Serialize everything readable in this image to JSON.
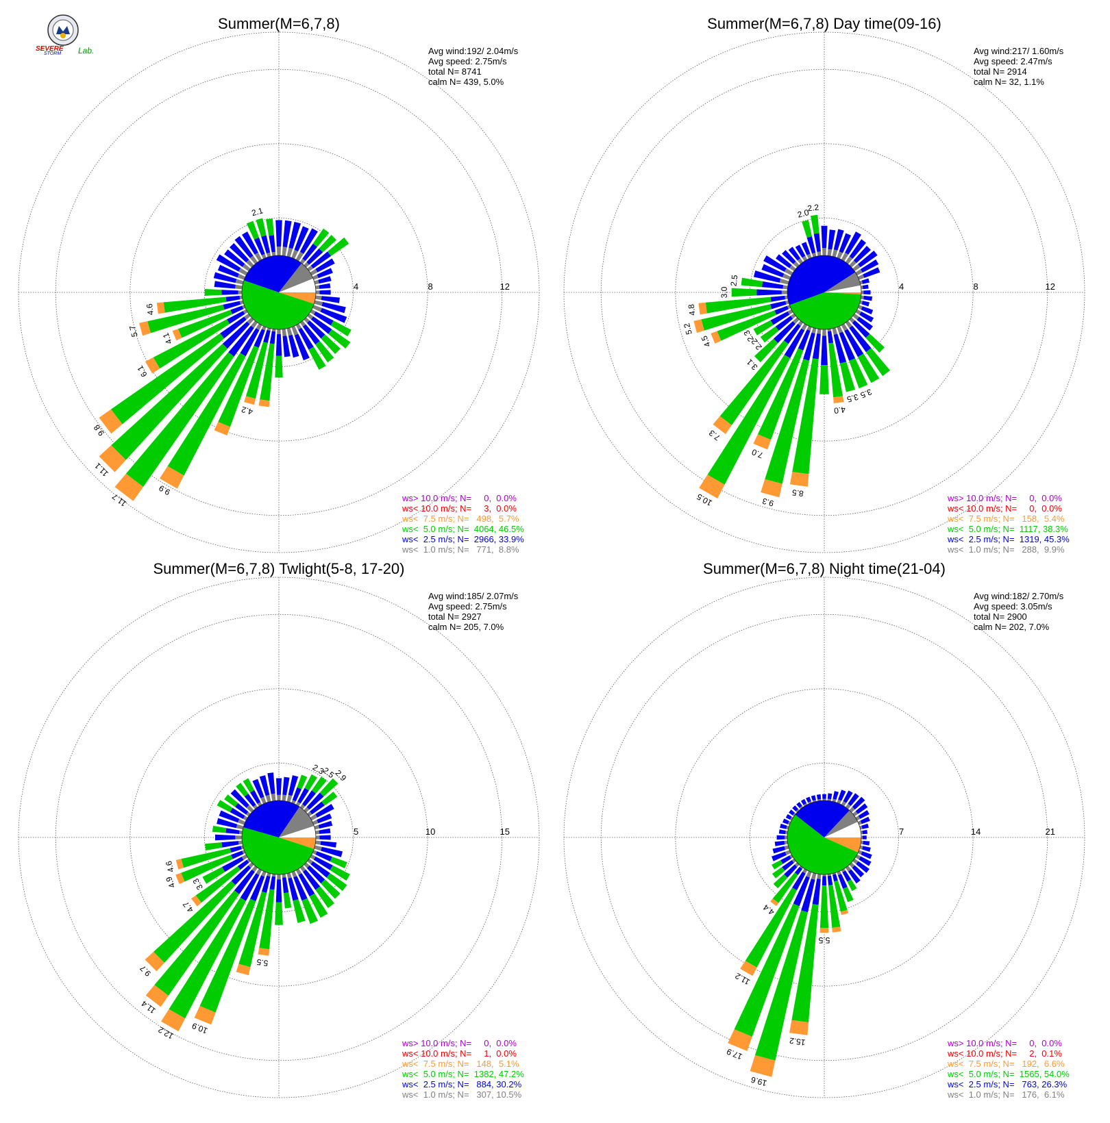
{
  "colors": {
    "ws_gt_10": "#aa00cc",
    "ws_lt_10": "#ee0000",
    "ws_lt_7_5": "#ff9933",
    "ws_lt_5": "#00cc00",
    "ws_lt_2_5": "#0000ee",
    "ws_lt_1": "#808080",
    "grid": "#555555"
  },
  "logo": {
    "line1": "SEVERE",
    "line2": "STORM",
    "line3": "Lab."
  },
  "chart_data": [
    {
      "type": "wind-rose",
      "title": "Summer(M=6,7,8)",
      "stats": [
        "Avg wind:192/ 2.04m/s",
        "Avg speed: 2.75m/s",
        "total N=        8741",
        "calm N=    439,   5.0%"
      ],
      "rings": [
        "4",
        "8",
        "12"
      ],
      "rmax": 14,
      "legend": [
        "ws> 10.0 m/s; N=     0,  0.0%",
        "ws< 10.0 m/s; N=     3,  0.0%",
        "ws<  7.5 m/s; N=   498,  5.7%",
        "ws<  5.0 m/s; N=  4064, 46.5%",
        "ws<  2.5 m/s; N=  2966, 33.9%",
        "ws<  1.0 m/s; N=   771,  8.8%"
      ],
      "pie": [
        {
          "from": 0,
          "to": 18,
          "band": "ws_lt_7_5"
        },
        {
          "from": 18,
          "to": 199,
          "band": "ws_lt_5"
        },
        {
          "from": 199,
          "to": 308,
          "band": "ws_lt_2_5"
        },
        {
          "from": 308,
          "to": 338,
          "band": "ws_lt_1"
        },
        {
          "from": 338,
          "to": 360,
          "band": "empty"
        }
      ],
      "sector_totals": [
        0.8,
        1.3,
        1.7,
        1.9,
        2.4,
        2.7,
        2.5,
        2.6,
        2.7,
        1.9,
        1.6,
        1.5,
        2.6,
        4.2,
        4.2,
        6.2,
        9.9,
        11.7,
        11.1,
        9.8,
        6.1,
        4.1,
        5.7,
        4.6,
        2.0,
        1.5,
        1.6,
        1.5,
        1.8,
        1.6,
        1.6,
        1.7,
        1.7,
        2.1,
        2.1,
        2.0,
        1.9,
        1.9,
        1.9,
        1.8,
        1.9,
        2.2,
        2.2,
        2.6,
        1.4,
        1.1,
        0.9,
        0.8
      ],
      "labels": [
        {
          "i": 14,
          "t": "4.2"
        },
        {
          "i": 16,
          "t": "9.9"
        },
        {
          "i": 17,
          "t": "11.7"
        },
        {
          "i": 18,
          "t": "11.1"
        },
        {
          "i": 19,
          "t": "9.8"
        },
        {
          "i": 20,
          "t": "6.1"
        },
        {
          "i": 21,
          "t": "4.1"
        },
        {
          "i": 22,
          "t": "5.7"
        },
        {
          "i": 23,
          "t": "4.6"
        },
        {
          "i": 34,
          "t": "2.1"
        }
      ]
    },
    {
      "type": "wind-rose",
      "title": "Summer(M=6,7,8) Day time(09-16)",
      "stats": [
        "Avg wind:217/ 1.60m/s",
        "Avg speed: 2.47m/s",
        "total N=        2914",
        "calm N=     32,   1.1%"
      ],
      "rings": [
        "4",
        "8",
        "12"
      ],
      "rmax": 14,
      "legend": [
        "ws> 10.0 m/s; N=     0,  0.0%",
        "ws< 10.0 m/s; N=     0,  0.0%",
        "ws<  7.5 m/s; N=   158,  5.4%",
        "ws<  5.0 m/s; N=  1117, 38.3%",
        "ws<  2.5 m/s; N=  1319, 45.3%",
        "ws<  1.0 m/s; N=   288,  9.9%"
      ],
      "pie": [
        {
          "from": 0,
          "to": 3,
          "band": "ws_lt_7_5"
        },
        {
          "from": 3,
          "to": 160,
          "band": "ws_lt_5"
        },
        {
          "from": 160,
          "to": 327,
          "band": "ws_lt_2_5"
        },
        {
          "from": 327,
          "to": 349,
          "band": "ws_lt_1"
        },
        {
          "from": 349,
          "to": 360,
          "band": "empty"
        }
      ],
      "sector_totals": [
        0.5,
        0.6,
        0.5,
        0.8,
        1.0,
        1.2,
        2.4,
        3.5,
        3.5,
        3.5,
        3.5,
        4.0,
        3.5,
        8.5,
        9.3,
        7.0,
        10.5,
        7.3,
        3.1,
        2.2,
        2.3,
        4.5,
        5.2,
        4.8,
        3.0,
        2.5,
        1.9,
        1.6,
        1.7,
        1.2,
        1.1,
        1.0,
        0.9,
        0.9,
        2.0,
        2.2,
        1.6,
        1.4,
        1.5,
        1.4,
        1.7,
        1.5,
        1.4,
        1.5,
        1.3,
        1.2,
        0.5,
        0.4
      ],
      "sector_map_note": "",
      "labels": [
        {
          "i": 9,
          "t": "3.5"
        },
        {
          "i": 10,
          "t": "3.5"
        },
        {
          "i": 11,
          "t": "4.0"
        },
        {
          "i": 13,
          "t": "8.5"
        },
        {
          "i": 14,
          "t": "9.3"
        },
        {
          "i": 15,
          "t": "7.0"
        },
        {
          "i": 16,
          "t": "10.5"
        },
        {
          "i": 17,
          "t": "7.3"
        },
        {
          "i": 18,
          "t": "3.1"
        },
        {
          "i": 19,
          "t": "2.2"
        },
        {
          "i": 20,
          "t": "2.3"
        },
        {
          "i": 21,
          "t": "4.5"
        },
        {
          "i": 22,
          "t": "5.2"
        },
        {
          "i": 23,
          "t": "4.8"
        },
        {
          "i": 24,
          "t": "3.0"
        },
        {
          "i": 25,
          "t": "2.5"
        },
        {
          "i": 34,
          "t": "2.0"
        },
        {
          "i": 35,
          "t": "2.2"
        }
      ]
    },
    {
      "type": "wind-rose",
      "title": "Summer(M=6,7,8) Twlight(5-8, 17-20)",
      "stats": [
        "Avg wind:185/ 2.07m/s",
        "Avg speed: 2.75m/s",
        "total N=        2927",
        "calm N=    205,   7.0%"
      ],
      "rings": [
        "5",
        "10",
        "15"
      ],
      "rmax": 17.5,
      "legend": [
        "ws> 10.0 m/s; N=     0,  0.0%",
        "ws< 10.0 m/s; N=     1,  0.0%",
        "ws<  7.5 m/s; N=   148,  5.1%",
        "ws<  5.0 m/s; N=  1382, 47.2%",
        "ws<  2.5 m/s; N=   884, 30.2%",
        "ws<  1.0 m/s; N=   307, 10.5%"
      ],
      "pie": [
        {
          "from": 0,
          "to": 18,
          "band": "ws_lt_7_5"
        },
        {
          "from": 18,
          "to": 196,
          "band": "ws_lt_5"
        },
        {
          "from": 196,
          "to": 304,
          "band": "ws_lt_2_5"
        },
        {
          "from": 304,
          "to": 342,
          "band": "ws_lt_1"
        },
        {
          "from": 342,
          "to": 360,
          "band": "empty"
        }
      ],
      "sector_totals": [
        1.0,
        1.4,
        1.9,
        2.4,
        2.9,
        3.1,
        3.1,
        3.3,
        3.6,
        3.7,
        3.4,
        2.3,
        3.4,
        5.5,
        7.0,
        10.9,
        12.2,
        11.4,
        9.7,
        4.7,
        3.3,
        4.9,
        4.6,
        2.5,
        1.8,
        2.0,
        1.8,
        1.8,
        2.2,
        2.0,
        1.9,
        2.0,
        2.0,
        1.7,
        1.8,
        1.9,
        1.5,
        1.6,
        1.8,
        2.0,
        2.3,
        2.5,
        2.9,
        2.3,
        1.7,
        1.3,
        1.2,
        1.0
      ],
      "labels": [
        {
          "i": 13,
          "t": "5.5"
        },
        {
          "i": 15,
          "t": "10.9"
        },
        {
          "i": 16,
          "t": "12.2"
        },
        {
          "i": 17,
          "t": "11.4"
        },
        {
          "i": 18,
          "t": "9.7"
        },
        {
          "i": 19,
          "t": "4.7"
        },
        {
          "i": 20,
          "t": "3.3"
        },
        {
          "i": 21,
          "t": "4.9"
        },
        {
          "i": 22,
          "t": "4.6"
        },
        {
          "i": 40,
          "t": "2.3"
        },
        {
          "i": 41,
          "t": "2.5"
        },
        {
          "i": 42,
          "t": "2.9"
        }
      ]
    },
    {
      "type": "wind-rose",
      "title": "Summer(M=6,7,8) Night time(21-04)",
      "stats": [
        "Avg wind:182/ 2.70m/s",
        "Avg speed: 3.05m/s",
        "total N=        2900",
        "calm N=    202,   7.0%"
      ],
      "rings": [
        "7",
        "14",
        "21"
      ],
      "rmax": 24.5,
      "legend": [
        "ws> 10.0 m/s; N=     0,  0.0%",
        "ws< 10.0 m/s; N=     2,  0.1%",
        "ws<  7.5 m/s; N=   192,  6.6%",
        "ws<  5.0 m/s; N=  1565, 54.0%",
        "ws<  2.5 m/s; N=   763, 26.3%",
        "ws<  1.0 m/s; N=   176,  6.1%"
      ],
      "pie": [
        {
          "from": 0,
          "to": 24,
          "band": "ws_lt_7_5"
        },
        {
          "from": 24,
          "to": 218,
          "band": "ws_lt_5"
        },
        {
          "from": 218,
          "to": 313,
          "band": "ws_lt_2_5"
        },
        {
          "from": 313,
          "to": 335,
          "band": "ws_lt_1"
        },
        {
          "from": 335,
          "to": 360,
          "band": "empty"
        }
      ],
      "sector_totals": [
        0.5,
        0.8,
        1.0,
        1.3,
        1.5,
        1.7,
        1.6,
        1.8,
        2.2,
        3.0,
        4.0,
        5.5,
        5.5,
        15.2,
        19.6,
        17.9,
        11.2,
        4.4,
        3.0,
        2.5,
        2.1,
        1.8,
        1.5,
        1.2,
        1.0,
        0.8,
        0.8,
        0.7,
        0.6,
        0.6,
        0.6,
        0.6,
        0.6,
        0.6,
        0.6,
        0.6,
        0.6,
        0.7,
        1.0,
        1.3,
        1.5,
        1.6,
        1.7,
        1.5,
        1.3,
        1.1,
        0.8,
        0.6
      ],
      "labels": [
        {
          "i": 12,
          "t": "5.5"
        },
        {
          "i": 13,
          "t": "15.2"
        },
        {
          "i": 14,
          "t": "19.6"
        },
        {
          "i": 15,
          "t": "17.9"
        },
        {
          "i": 16,
          "t": "11.2"
        },
        {
          "i": 17,
          "t": "4.4"
        }
      ]
    }
  ]
}
